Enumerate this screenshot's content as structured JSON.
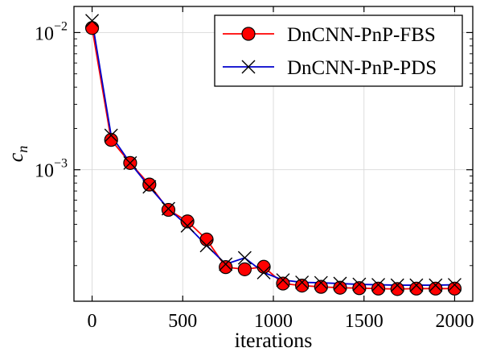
{
  "chart_data": {
    "type": "line",
    "title": "",
    "xlabel": "iterations",
    "ylabel": "c",
    "ylabel_subscript": "n",
    "xlim": [
      -100,
      2100
    ],
    "ylim": [
      0.00011,
      0.0155
    ],
    "yscale": "log",
    "grid": true,
    "legend_position": "top-right",
    "x_ticks": [
      0,
      500,
      1000,
      1500,
      2000
    ],
    "x_tick_labels": [
      "0",
      "500",
      "1000",
      "1500",
      "2000"
    ],
    "y_ticks": [
      0.01,
      0.001
    ],
    "y_tick_labels": [
      {
        "base": "10",
        "exp": "−2"
      },
      {
        "base": "10",
        "exp": "−3"
      }
    ],
    "x": [
      0,
      105,
      210,
      316,
      421,
      526,
      632,
      737,
      842,
      947,
      1053,
      1158,
      1263,
      1368,
      1474,
      1579,
      1684,
      1789,
      1895,
      2000
    ],
    "series": [
      {
        "name": "DnCNN-PnP-FBS",
        "color": "#ff0000",
        "marker": "circle",
        "values": [
          0.0108,
          0.00165,
          0.00112,
          0.00078,
          0.00051,
          0.00042,
          0.00031,
          0.000195,
          0.000188,
          0.000196,
          0.000148,
          0.000143,
          0.00014,
          0.000138,
          0.000137,
          0.000136,
          0.000135,
          0.000136,
          0.000136,
          0.000136
        ]
      },
      {
        "name": "DnCNN-PnP-PDS",
        "color": "#0000cc",
        "marker": "x",
        "values": [
          0.0122,
          0.00178,
          0.00112,
          0.00075,
          0.00052,
          0.00039,
          0.00028,
          0.000205,
          0.000228,
          0.000178,
          0.000157,
          0.000151,
          0.00015,
          0.000148,
          0.000146,
          0.000145,
          0.000144,
          0.000144,
          0.000144,
          0.000145
        ]
      }
    ]
  }
}
